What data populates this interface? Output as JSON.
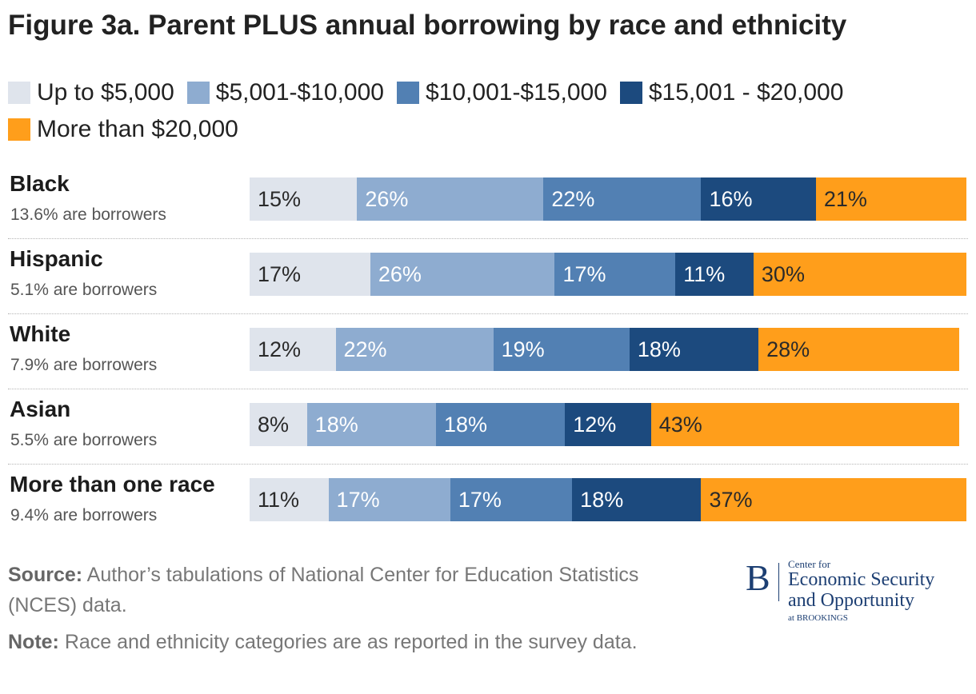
{
  "chart_data": {
    "type": "bar",
    "orientation": "horizontal",
    "stacked": true,
    "title": "Figure 3a. Parent PLUS annual borrowing by race and ethnicity",
    "legend_position": "top",
    "categories": [
      "Black",
      "Hispanic",
      "White",
      "Asian",
      "More than one race"
    ],
    "category_subtitles": [
      "13.6% are borrowers",
      "5.1% are borrowers",
      "7.9% are borrowers",
      "5.5% are borrowers",
      "9.4% are borrowers"
    ],
    "series": [
      {
        "name": "Up to $5,000",
        "color": "#dfe4ec",
        "text_color": "#2a2a2a",
        "values": [
          15,
          17,
          12,
          8,
          11
        ]
      },
      {
        "name": "$5,001-$10,000",
        "color": "#8eacd0",
        "text_color": "#ffffff",
        "values": [
          26,
          26,
          22,
          18,
          17
        ]
      },
      {
        "name": "$10,001-$15,000",
        "color": "#5280b3",
        "text_color": "#ffffff",
        "values": [
          22,
          17,
          19,
          18,
          17
        ]
      },
      {
        "name": "$15,001 - $20,000",
        "color": "#1c4a7e",
        "text_color": "#ffffff",
        "values": [
          16,
          11,
          18,
          12,
          18
        ]
      },
      {
        "name": "More than $20,000",
        "color": "#ff9e1b",
        "text_color": "#2a2a2a",
        "values": [
          21,
          30,
          28,
          43,
          37
        ]
      }
    ],
    "value_suffix": "%",
    "xlim": [
      0,
      100
    ]
  },
  "footer": {
    "source_label": "Source:",
    "source_text": "Author’s tabulations of National Center for Education Statistics (NCES) data.",
    "note_label": "Note:",
    "note_text": "Race and ethnicity categories are as reported in the survey data."
  },
  "logo": {
    "mark": "B",
    "small": "Center for",
    "line1": "Economic Security",
    "line2": "and Opportunity",
    "at": "at BROOKINGS"
  }
}
